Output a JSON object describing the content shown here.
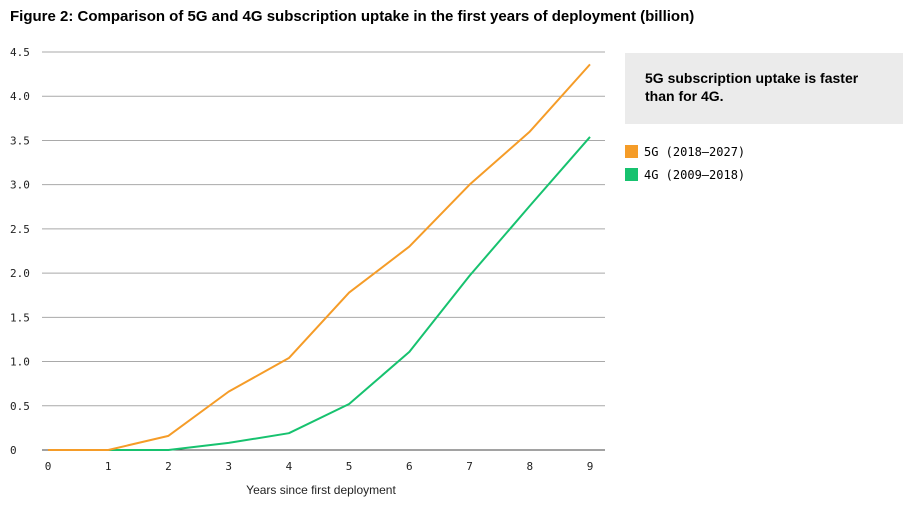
{
  "title": "Figure 2: Comparison of 5G and 4G subscription uptake in the first years of deployment (billion)",
  "callout": "5G subscription uptake is faster than for 4G.",
  "chart_data": {
    "type": "line",
    "xlabel": "Years since first deployment",
    "ylabel": "",
    "x": [
      0,
      1,
      2,
      3,
      4,
      5,
      6,
      7,
      8,
      9
    ],
    "xlim": [
      0,
      9
    ],
    "ylim": [
      0,
      4.5
    ],
    "yticks": [
      "0",
      "0.5",
      "1.0",
      "1.5",
      "2.0",
      "2.5",
      "3.0",
      "3.5",
      "4.0",
      "4.5"
    ],
    "xticks": [
      "0",
      "1",
      "2",
      "3",
      "4",
      "5",
      "6",
      "7",
      "8",
      "9"
    ],
    "grid": true,
    "legend_position": "right",
    "series": [
      {
        "name": "5G (2018–2027)",
        "color": "#F59C28",
        "values": [
          0.0,
          0.0,
          0.16,
          0.66,
          1.04,
          1.78,
          2.3,
          3.0,
          3.6,
          4.36
        ]
      },
      {
        "name": "4G (2009–2018)",
        "color": "#17C26F",
        "values": [
          0.0,
          0.0,
          0.0,
          0.08,
          0.19,
          0.52,
          1.11,
          1.97,
          2.76,
          3.54
        ]
      }
    ]
  }
}
